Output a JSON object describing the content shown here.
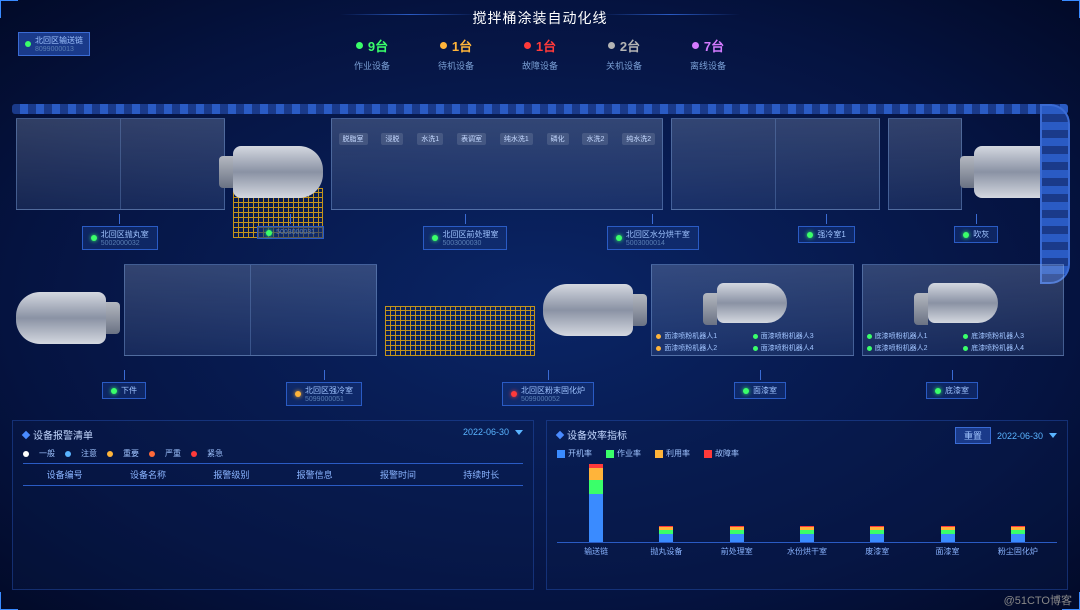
{
  "title": "搅拌桶涂装自动化线",
  "watermark": "@51CTO博客",
  "status": [
    {
      "count": "9台",
      "label": "作业设备",
      "color": "#3aff6a"
    },
    {
      "count": "1台",
      "label": "待机设备",
      "color": "#ffb43a"
    },
    {
      "count": "1台",
      "label": "故障设备",
      "color": "#ff3a3a"
    },
    {
      "count": "2台",
      "label": "关机设备",
      "color": "#b4b4b4"
    },
    {
      "count": "7台",
      "label": "离线设备",
      "color": "#d47aff"
    }
  ],
  "top_tag": {
    "name": "北回区输送链",
    "id": "8099000013",
    "color": "#3aff6a"
  },
  "row1_booths": [
    "脱脂室",
    "浸脱",
    "水洗1",
    "表调室",
    "纯水洗1",
    "磷化",
    "水洗2",
    "纯水洗2"
  ],
  "row1_tags": [
    {
      "name": "北回区抛丸室",
      "id": "5002000032",
      "color": "#3aff6a"
    },
    {
      "name": "",
      "id": "5003000031",
      "color": "#3aff6a"
    },
    {
      "name": "北回区前处理室",
      "id": "5003000030",
      "color": "#3aff6a"
    },
    {
      "name": "北回区水分烘干室",
      "id": "5003000014",
      "color": "#3aff6a"
    },
    {
      "name": "强冷室1",
      "id": "",
      "color": "#3aff6a"
    },
    {
      "name": "吹灰",
      "id": "",
      "color": "#3aff6a"
    }
  ],
  "row2_tags": [
    {
      "name": "下件",
      "id": "",
      "color": "#3aff6a"
    },
    {
      "name": "北回区强冷室",
      "id": "5099000051",
      "color": "#ffb43a"
    },
    {
      "name": "北回区粉末固化炉",
      "id": "5099000052",
      "color": "#ff3a3a"
    },
    {
      "name": "面漆室",
      "id": "",
      "color": "#3aff6a"
    },
    {
      "name": "底漆室",
      "id": "",
      "color": "#3aff6a"
    }
  ],
  "robots_face": [
    {
      "name": "面漆喷粉机器人1",
      "color": "#ffb43a"
    },
    {
      "name": "面漆喷粉机器人3",
      "color": "#3aff6a"
    },
    {
      "name": "面漆喷粉机器人2",
      "color": "#ffb43a"
    },
    {
      "name": "面漆喷粉机器人4",
      "color": "#3aff6a"
    }
  ],
  "robots_base": [
    {
      "name": "底漆喷粉机器人1",
      "color": "#3aff6a"
    },
    {
      "name": "底漆喷粉机器人3",
      "color": "#3aff6a"
    },
    {
      "name": "底漆喷粉机器人2",
      "color": "#3aff6a"
    },
    {
      "name": "底漆喷粉机器人4",
      "color": "#3aff6a"
    }
  ],
  "alarm": {
    "title": "设备报警清单",
    "date": "2022-06-30",
    "levels": [
      {
        "name": "一般",
        "color": "#ffffff"
      },
      {
        "name": "注意",
        "color": "#5ab4ff"
      },
      {
        "name": "重要",
        "color": "#ffb43a"
      },
      {
        "name": "严重",
        "color": "#ff6a3a"
      },
      {
        "name": "紧急",
        "color": "#ff3a3a"
      }
    ],
    "columns": [
      "设备编号",
      "设备名称",
      "报警级别",
      "报警信息",
      "报警时间",
      "持续时长"
    ]
  },
  "efficiency": {
    "title": "设备效率指标",
    "date": "2022-06-30",
    "reset": "重置",
    "legend": [
      {
        "name": "开机率",
        "color": "#3a8bff"
      },
      {
        "name": "作业率",
        "color": "#3aff6a"
      },
      {
        "name": "利用率",
        "color": "#ffb43a"
      },
      {
        "name": "故障率",
        "color": "#ff3a3a"
      }
    ],
    "bars": [
      {
        "label": "输送链",
        "v": [
          48,
          14,
          12,
          4
        ]
      },
      {
        "label": "抛丸设备",
        "v": [
          8,
          4,
          3,
          1
        ]
      },
      {
        "label": "前处理室",
        "v": [
          8,
          4,
          3,
          1
        ]
      },
      {
        "label": "水份烘干室",
        "v": [
          8,
          4,
          3,
          1
        ]
      },
      {
        "label": "废漆室",
        "v": [
          8,
          4,
          3,
          1
        ]
      },
      {
        "label": "面漆室",
        "v": [
          8,
          4,
          3,
          1
        ]
      },
      {
        "label": "粉尘固化炉",
        "v": [
          8,
          4,
          3,
          1
        ]
      }
    ]
  }
}
